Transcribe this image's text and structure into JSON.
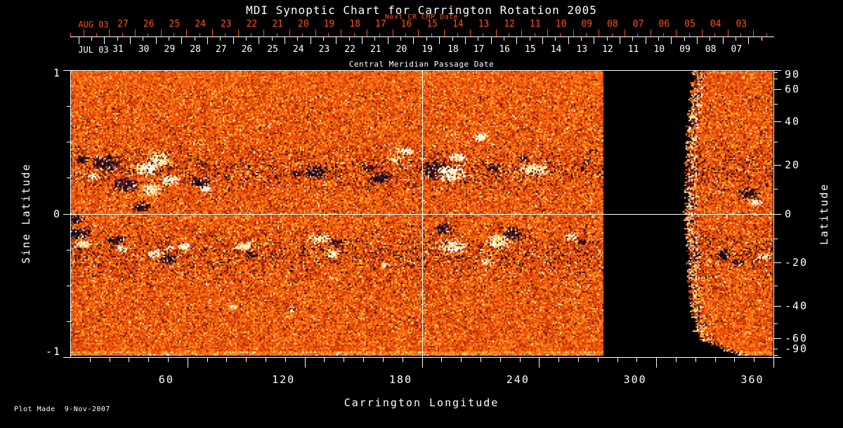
{
  "title": "MDI Synoptic Chart for Carrington Rotation 2005",
  "colors": {
    "background": "#000000",
    "foreground": "#ffffff",
    "next_cr_red": "#f8511c"
  },
  "top_axis": {
    "next_cr_label": "Next CR CMP Date",
    "next_month_label": "AUG 03",
    "next_days": [
      "27",
      "26",
      "25",
      "24",
      "23",
      "22",
      "21",
      "20",
      "19",
      "18",
      "17",
      "16",
      "15",
      "14",
      "13",
      "12",
      "11",
      "10",
      "09",
      "08",
      "07",
      "06",
      "05",
      "04",
      "03"
    ],
    "month_label": "JUL 03",
    "days": [
      "31",
      "30",
      "29",
      "28",
      "27",
      "26",
      "25",
      "24",
      "23",
      "22",
      "21",
      "20",
      "19",
      "18",
      "17",
      "16",
      "15",
      "14",
      "13",
      "12",
      "11",
      "10",
      "09",
      "08",
      "07"
    ],
    "axis_title": "Central Meridian Passage Date"
  },
  "left_axis": {
    "title": "Sine Latitude",
    "tick_labels": [
      "1",
      "0",
      "-1"
    ]
  },
  "right_axis": {
    "title": "Latitude",
    "tick_labels": [
      "90",
      "60",
      "40",
      "20",
      "0",
      "-20",
      "-40",
      "-60",
      "-90"
    ]
  },
  "bottom_axis": {
    "title": "Carrington Longitude",
    "tick_labels": [
      "60",
      "120",
      "180",
      "240",
      "300",
      "360"
    ]
  },
  "footer": {
    "plot_made": "Plot Made  9-Nov-2007"
  },
  "chart_data": {
    "type": "heatmap",
    "title": "MDI Synoptic Chart for Carrington Rotation 2005",
    "xlabel": "Carrington Longitude",
    "ylabel_left": "Sine Latitude",
    "ylabel_right": "Latitude",
    "x_axis": {
      "range": [
        0,
        360
      ],
      "major_ticks": [
        60,
        120,
        180,
        240,
        300,
        360
      ],
      "minor_step": 10
    },
    "y_axis": {
      "range": [
        -1,
        1
      ],
      "major_ticks": [
        1,
        0,
        -1
      ],
      "minor_ticks": [
        0.75,
        0.5,
        0.25,
        -0.25,
        -0.5,
        -0.75
      ]
    },
    "right_axis_major_deg": [
      90,
      60,
      40,
      20,
      0,
      -20,
      -40,
      -60,
      -90
    ],
    "right_axis_minor_deg": [
      80,
      70,
      50,
      30,
      10,
      -10,
      -30,
      -50,
      -70,
      -80
    ],
    "crosshair": {
      "longitude": 180,
      "sine_latitude": 0
    },
    "image": {
      "description": "Full-disk line-of-sight magnetic field synoptic map; quiet-sun orange/red noise, positive field white/yellow, negative field black/navy.",
      "main_region_longitude": [
        0,
        272.5
      ],
      "data_gap_longitude": [
        272.5,
        315.3
      ],
      "crescent_longitude": [
        315.3,
        360
      ],
      "palette": {
        "p_white": "#ffffff",
        "p_cream": "#ffeab0",
        "p_yellow": "#ffd24d",
        "p_amber": "#ffaa28",
        "o_bright": "#ff8c1f",
        "o_mid": "#f8660e",
        "o_base": "#ee5008",
        "r_mid": "#d63c08",
        "r_dark": "#b12a06",
        "r_deep": "#8a1a05",
        "maroon": "#5a1006",
        "navy": "#221450",
        "ink": "#060612"
      },
      "active_regions": [
        {
          "lon": 5,
          "s": 0.39,
          "r": 5,
          "pol": -1
        },
        {
          "lon": 18,
          "s": 0.36,
          "r": 10,
          "pol": -1
        },
        {
          "lon": 28,
          "s": 0.21,
          "r": 9,
          "pol": -1
        },
        {
          "lon": 36,
          "s": 0.06,
          "r": 7,
          "pol": -1
        },
        {
          "lon": 38,
          "s": 0.32,
          "r": 9,
          "pol": 1
        },
        {
          "lon": 45,
          "s": 0.39,
          "r": 9,
          "pol": 1
        },
        {
          "lon": 41,
          "s": 0.17,
          "r": 8,
          "pol": 1
        },
        {
          "lon": 50,
          "s": 0.24,
          "r": 7,
          "pol": 1
        },
        {
          "lon": 11,
          "s": 0.27,
          "r": 4,
          "pol": 1
        },
        {
          "lon": 66,
          "s": 0.23,
          "r": 7,
          "pol": -1
        },
        {
          "lon": 69,
          "s": 0.18,
          "r": 5,
          "pol": 1
        },
        {
          "lon": 115,
          "s": 0.29,
          "r": 4,
          "pol": -1
        },
        {
          "lon": 125,
          "s": 0.3,
          "r": 8,
          "pol": -1
        },
        {
          "lon": 152,
          "s": 0.33,
          "r": 5,
          "pol": -1
        },
        {
          "lon": 158,
          "s": 0.26,
          "r": 8,
          "pol": -1
        },
        {
          "lon": 165,
          "s": 0.39,
          "r": 4,
          "pol": 1
        },
        {
          "lon": 171,
          "s": 0.44,
          "r": 6,
          "pol": 1
        },
        {
          "lon": 187,
          "s": 0.32,
          "r": 11,
          "pol": -1
        },
        {
          "lon": 194,
          "s": 0.29,
          "r": 10,
          "pol": 1
        },
        {
          "lon": 198,
          "s": 0.4,
          "r": 6,
          "pol": 1
        },
        {
          "lon": 210,
          "s": 0.54,
          "r": 6,
          "pol": 1
        },
        {
          "lon": 216,
          "s": 0.33,
          "r": 5,
          "pol": -1
        },
        {
          "lon": 232,
          "s": 0.39,
          "r": 4,
          "pol": -1
        },
        {
          "lon": 237,
          "s": 0.32,
          "r": 9,
          "pol": 1
        },
        {
          "lon": 2,
          "s": -0.03,
          "r": 6,
          "pol": -1
        },
        {
          "lon": 3,
          "s": -0.13,
          "r": 9,
          "pol": -1
        },
        {
          "lon": 6,
          "s": -0.2,
          "r": 6,
          "pol": 1
        },
        {
          "lon": 23,
          "s": -0.17,
          "r": 6,
          "pol": -1
        },
        {
          "lon": 26,
          "s": -0.24,
          "r": 4,
          "pol": 1
        },
        {
          "lon": 43,
          "s": -0.27,
          "r": 6,
          "pol": 1
        },
        {
          "lon": 50,
          "s": -0.31,
          "r": 6,
          "pol": -1
        },
        {
          "lon": 58,
          "s": -0.22,
          "r": 5,
          "pol": 1
        },
        {
          "lon": 88,
          "s": -0.22,
          "r": 6,
          "pol": 1
        },
        {
          "lon": 92,
          "s": -0.28,
          "r": 4,
          "pol": -1
        },
        {
          "lon": 127,
          "s": -0.17,
          "r": 7,
          "pol": 1
        },
        {
          "lon": 133,
          "s": -0.27,
          "r": 5,
          "pol": 1
        },
        {
          "lon": 136,
          "s": -0.2,
          "r": 5,
          "pol": -1
        },
        {
          "lon": 190,
          "s": -0.1,
          "r": 7,
          "pol": -1
        },
        {
          "lon": 195,
          "s": -0.22,
          "r": 9,
          "pol": 1
        },
        {
          "lon": 219,
          "s": -0.18,
          "r": 9,
          "pol": 1
        },
        {
          "lon": 226,
          "s": -0.13,
          "r": 8,
          "pol": -1
        },
        {
          "lon": 212,
          "s": -0.32,
          "r": 4,
          "pol": 1
        },
        {
          "lon": 256,
          "s": -0.15,
          "r": 5,
          "pol": 1
        },
        {
          "lon": 261,
          "s": -0.19,
          "r": 4,
          "pol": -1
        },
        {
          "lon": 347,
          "s": 0.15,
          "r": 8,
          "pol": -1
        },
        {
          "lon": 350,
          "s": 0.09,
          "r": 5,
          "pol": 1
        },
        {
          "lon": 334,
          "s": -0.28,
          "r": 6,
          "pol": -1
        },
        {
          "lon": 354,
          "s": -0.29,
          "r": 5,
          "pol": 1
        },
        {
          "lon": 341,
          "s": -0.33,
          "r": 5,
          "pol": -1
        },
        {
          "lon": 83,
          "s": -0.64,
          "r": 3,
          "pol": 1
        },
        {
          "lon": 113,
          "s": -0.66,
          "r": 3,
          "pol": 1
        },
        {
          "lon": 160,
          "s": -0.35,
          "r": 3,
          "pol": 1
        },
        {
          "lon": 50,
          "s": -0.23,
          "r": 3,
          "pol": 1
        }
      ]
    }
  }
}
